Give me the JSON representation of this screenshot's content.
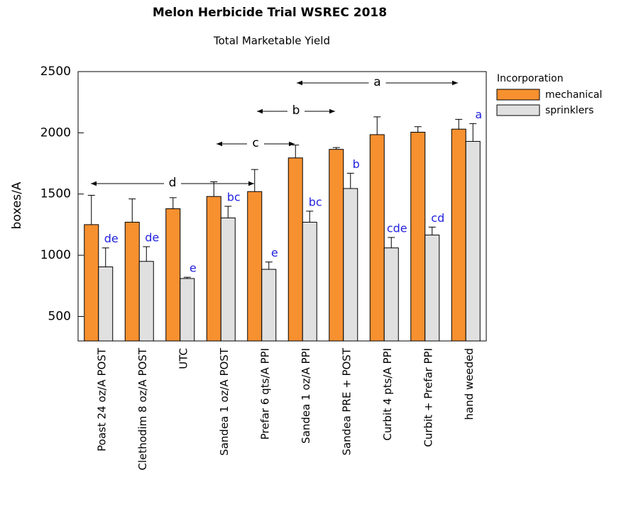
{
  "chart_data": {
    "type": "bar",
    "title": "Melon Herbicide Trial WSREC 2018",
    "subtitle": "Total Marketable Yield",
    "ylabel": "boxes/A",
    "categories": [
      "Poast 24 oz/A POST",
      "Clethodim 8 oz/A POST",
      "UTC",
      "Sandea 1 oz/A POST",
      "Prefar 6 qts/A PPI",
      "Sandea 1 oz/A PPI",
      "Sandea PRE + POST",
      "Curbit 4 pts/A PPI",
      "Curbit + Prefar PPI",
      "hand weeded"
    ],
    "legend_title": "Incorporation",
    "series": [
      {
        "name": "mechanical",
        "color": "#f7902f",
        "values": [
          1250,
          1270,
          1380,
          1480,
          1520,
          1795,
          1865,
          1985,
          2005,
          2030
        ],
        "errors": [
          240,
          190,
          90,
          120,
          180,
          105,
          15,
          145,
          45,
          80
        ]
      },
      {
        "name": "sprinklers",
        "color": "#e0e0e0",
        "values": [
          905,
          950,
          810,
          1305,
          885,
          1270,
          1545,
          1060,
          1165,
          1930
        ],
        "errors": [
          155,
          120,
          10,
          95,
          60,
          90,
          125,
          85,
          65,
          145
        ],
        "letters": [
          "de",
          "de",
          "e",
          "bc",
          "e",
          "bc",
          "b",
          "cde",
          "cd",
          "a"
        ]
      }
    ],
    "annotations": [
      "a",
      "b",
      "c",
      "d"
    ],
    "ylim": [
      300,
      2500
    ],
    "yticks": [
      500,
      1000,
      1500,
      2000,
      2500
    ]
  }
}
